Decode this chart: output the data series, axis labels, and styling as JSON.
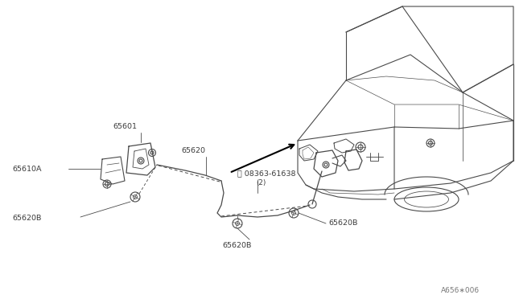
{
  "background_color": "#ffffff",
  "line_color": "#4a4a4a",
  "text_color": "#3a3a3a",
  "watermark": "A656∗006",
  "fig_width": 6.4,
  "fig_height": 3.72,
  "dpi": 100,
  "label_65601": "65601",
  "label_65610A": "65610A",
  "label_65620": "65620",
  "label_screw": "Ⓢ 08363-61638",
  "label_screw_qty": "(2)",
  "label_65620B": "65620B"
}
